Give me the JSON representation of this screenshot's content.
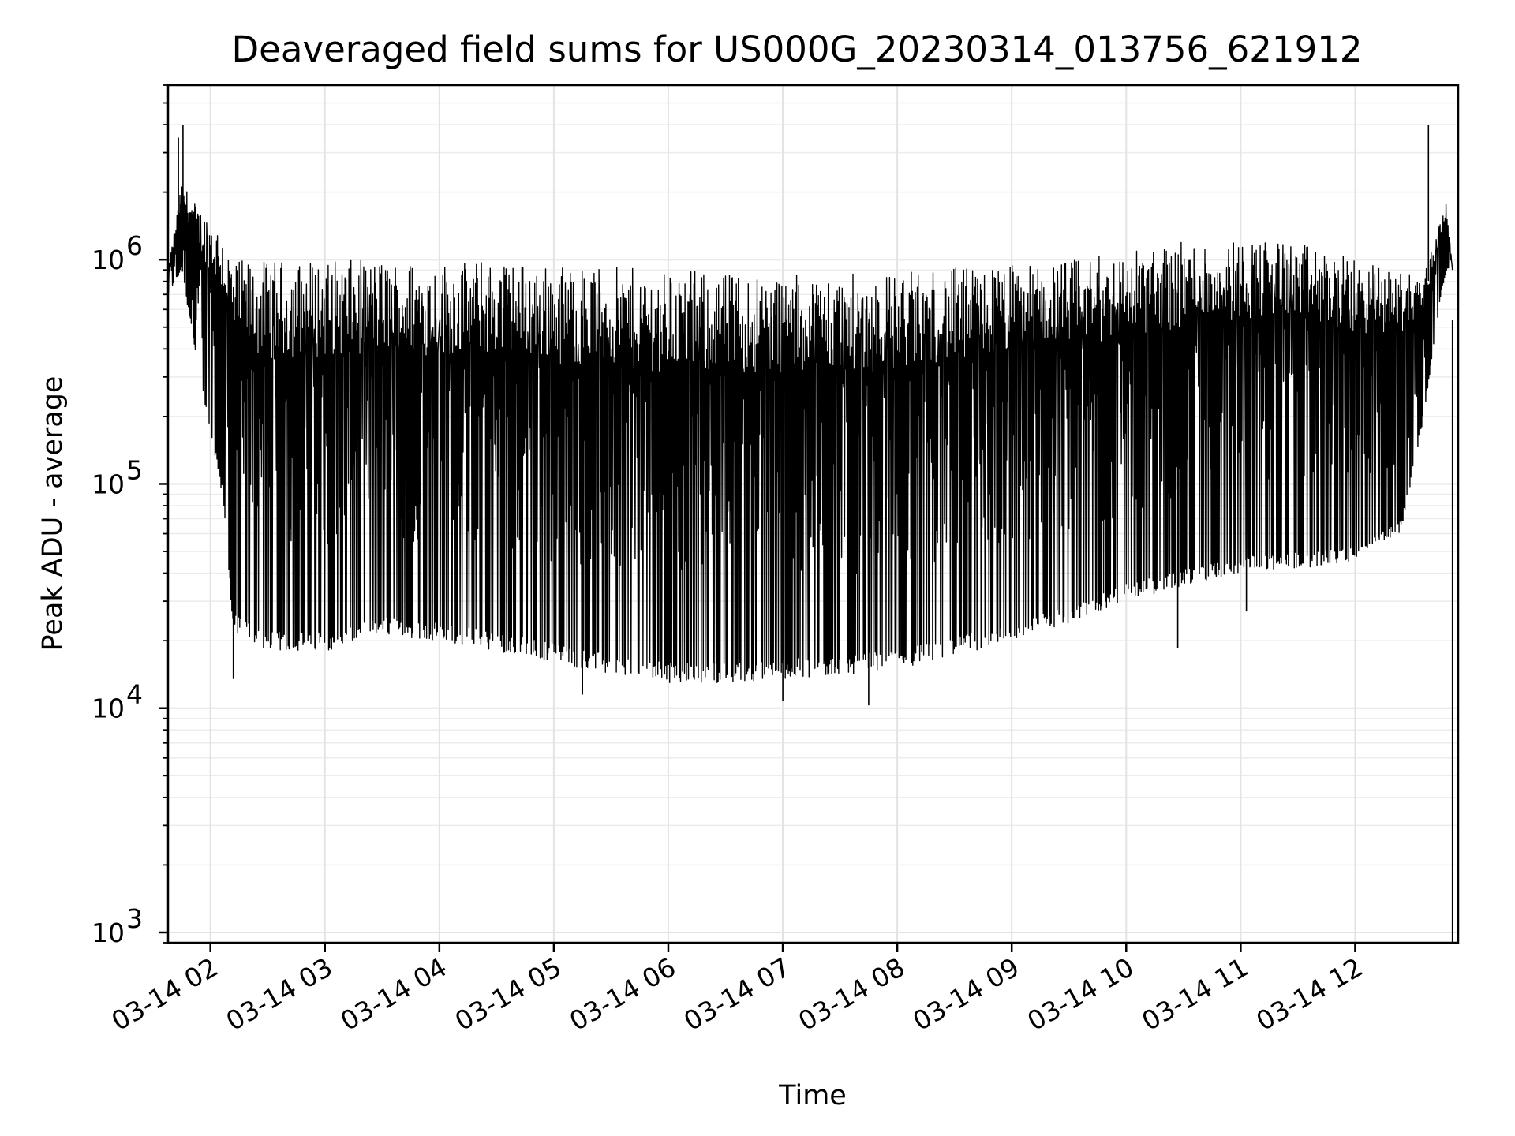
{
  "chart_data": {
    "type": "line",
    "title": "Deaveraged field sums for US000G_20230314_013756_621912",
    "xlabel": "Time",
    "ylabel": "Peak ADU - average",
    "yscale": "log",
    "ylim": [
      900,
      6000000
    ],
    "xlim_hours": [
      1.63,
      12.9
    ],
    "x_ticks": [
      {
        "label": "03-14 02",
        "hour": 2
      },
      {
        "label": "03-14 03",
        "hour": 3
      },
      {
        "label": "03-14 04",
        "hour": 4
      },
      {
        "label": "03-14 05",
        "hour": 5
      },
      {
        "label": "03-14 06",
        "hour": 6
      },
      {
        "label": "03-14 07",
        "hour": 7
      },
      {
        "label": "03-14 08",
        "hour": 8
      },
      {
        "label": "03-14 09",
        "hour": 9
      },
      {
        "label": "03-14 10",
        "hour": 10
      },
      {
        "label": "03-14 11",
        "hour": 11
      },
      {
        "label": "03-14 12",
        "hour": 12
      }
    ],
    "y_ticks": [
      {
        "base": "10",
        "exp": "3",
        "value": 1000
      },
      {
        "base": "10",
        "exp": "4",
        "value": 10000
      },
      {
        "base": "10",
        "exp": "5",
        "value": 100000
      },
      {
        "base": "10",
        "exp": "6",
        "value": 1000000
      }
    ],
    "grid": true,
    "line_color": "#000000",
    "envelope": {
      "hours": [
        1.63,
        1.75,
        1.9,
        2.1,
        2.2,
        2.5,
        3.0,
        3.5,
        4.0,
        4.5,
        5.0,
        5.5,
        6.0,
        6.5,
        7.0,
        7.5,
        8.0,
        8.5,
        9.0,
        9.5,
        10.0,
        10.5,
        11.0,
        11.5,
        12.0,
        12.4,
        12.6,
        12.75,
        12.8,
        12.85
      ],
      "upper": [
        900000,
        2200000,
        1700000,
        1400000,
        1000000,
        980000,
        1000000,
        1000000,
        980000,
        1000000,
        950000,
        930000,
        900000,
        880000,
        870000,
        860000,
        880000,
        920000,
        960000,
        1000000,
        1100000,
        1200000,
        1250000,
        1200000,
        1000000,
        900000,
        850000,
        1600000,
        1800000,
        900000
      ],
      "lower": [
        700000,
        900000,
        300000,
        90000,
        22000,
        18000,
        18000,
        21000,
        20000,
        18000,
        16000,
        14000,
        13000,
        13000,
        13500,
        14000,
        15000,
        17000,
        20000,
        24000,
        30000,
        35000,
        40000,
        42000,
        45000,
        60000,
        200000,
        700000,
        900000,
        900000
      ]
    },
    "spikes": [
      {
        "hour": 1.72,
        "value": 3500000
      },
      {
        "hour": 1.76,
        "value": 4000000
      },
      {
        "hour": 2.2,
        "value": 13500
      },
      {
        "hour": 5.25,
        "value": 11500
      },
      {
        "hour": 7.0,
        "value": 10800
      },
      {
        "hour": 7.75,
        "value": 10300
      },
      {
        "hour": 10.45,
        "value": 18500
      },
      {
        "hour": 11.05,
        "value": 27000
      },
      {
        "hour": 12.64,
        "value": 4000000
      },
      {
        "hour": 12.85,
        "value": 900
      }
    ]
  }
}
